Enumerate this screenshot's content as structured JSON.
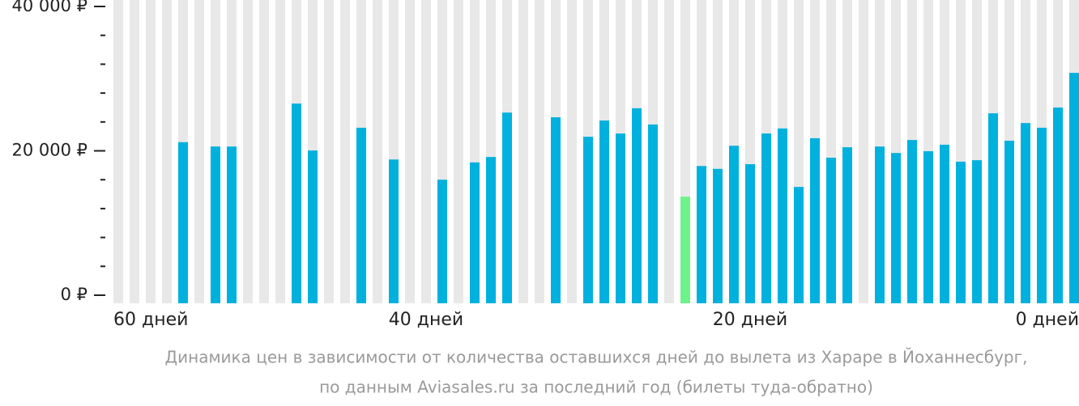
{
  "chart_data": {
    "type": "bar",
    "categories": [
      "60 дней",
      null,
      null,
      null,
      null,
      null,
      null,
      null,
      null,
      null,
      null,
      null,
      null,
      null,
      null,
      null,
      null,
      null,
      null,
      "40 дней",
      null,
      null,
      null,
      null,
      null,
      null,
      null,
      null,
      null,
      null,
      null,
      null,
      null,
      null,
      null,
      null,
      null,
      null,
      null,
      "20 дней",
      null,
      null,
      null,
      null,
      null,
      null,
      null,
      null,
      null,
      null,
      null,
      null,
      null,
      null,
      null,
      null,
      null,
      null,
      null,
      "0 дней"
    ],
    "values": [
      null,
      null,
      null,
      null,
      21200,
      null,
      20600,
      20600,
      null,
      null,
      null,
      26550,
      20050,
      null,
      null,
      23200,
      null,
      18800,
      null,
      null,
      16000,
      null,
      18400,
      19150,
      25300,
      null,
      null,
      24650,
      null,
      21950,
      24200,
      22400,
      25900,
      23650,
      null,
      13650,
      17900,
      17500,
      20700,
      18150,
      22400,
      23100,
      15000,
      21750,
      19050,
      20500,
      null,
      20600,
      19700,
      21500,
      19950,
      20850,
      18500,
      18700,
      25200,
      21400,
      23850,
      23200,
      26000,
      30800
    ],
    "color": "#00b1de",
    "highlight": "min",
    "highlight_color": "#6ef38a",
    "background_color": "#e8e8e8",
    "ylim": [
      0,
      40000
    ],
    "yticks": [
      {
        "value": 0,
        "label": "0 ₽"
      },
      {
        "value": 20000,
        "label": "20 000 ₽"
      },
      {
        "value": 40000,
        "label": "40 000 ₽"
      }
    ],
    "minor_yticks": [
      4000,
      8000,
      12000,
      16000,
      24000,
      28000,
      32000,
      36000
    ],
    "caption": [
      "Динамика цен в зависимости от количества оставшихся дней до вылета из Хараре в Йоханнесбург,",
      "по данным Aviasales.ru за последний год (билеты туда-обратно)"
    ]
  }
}
